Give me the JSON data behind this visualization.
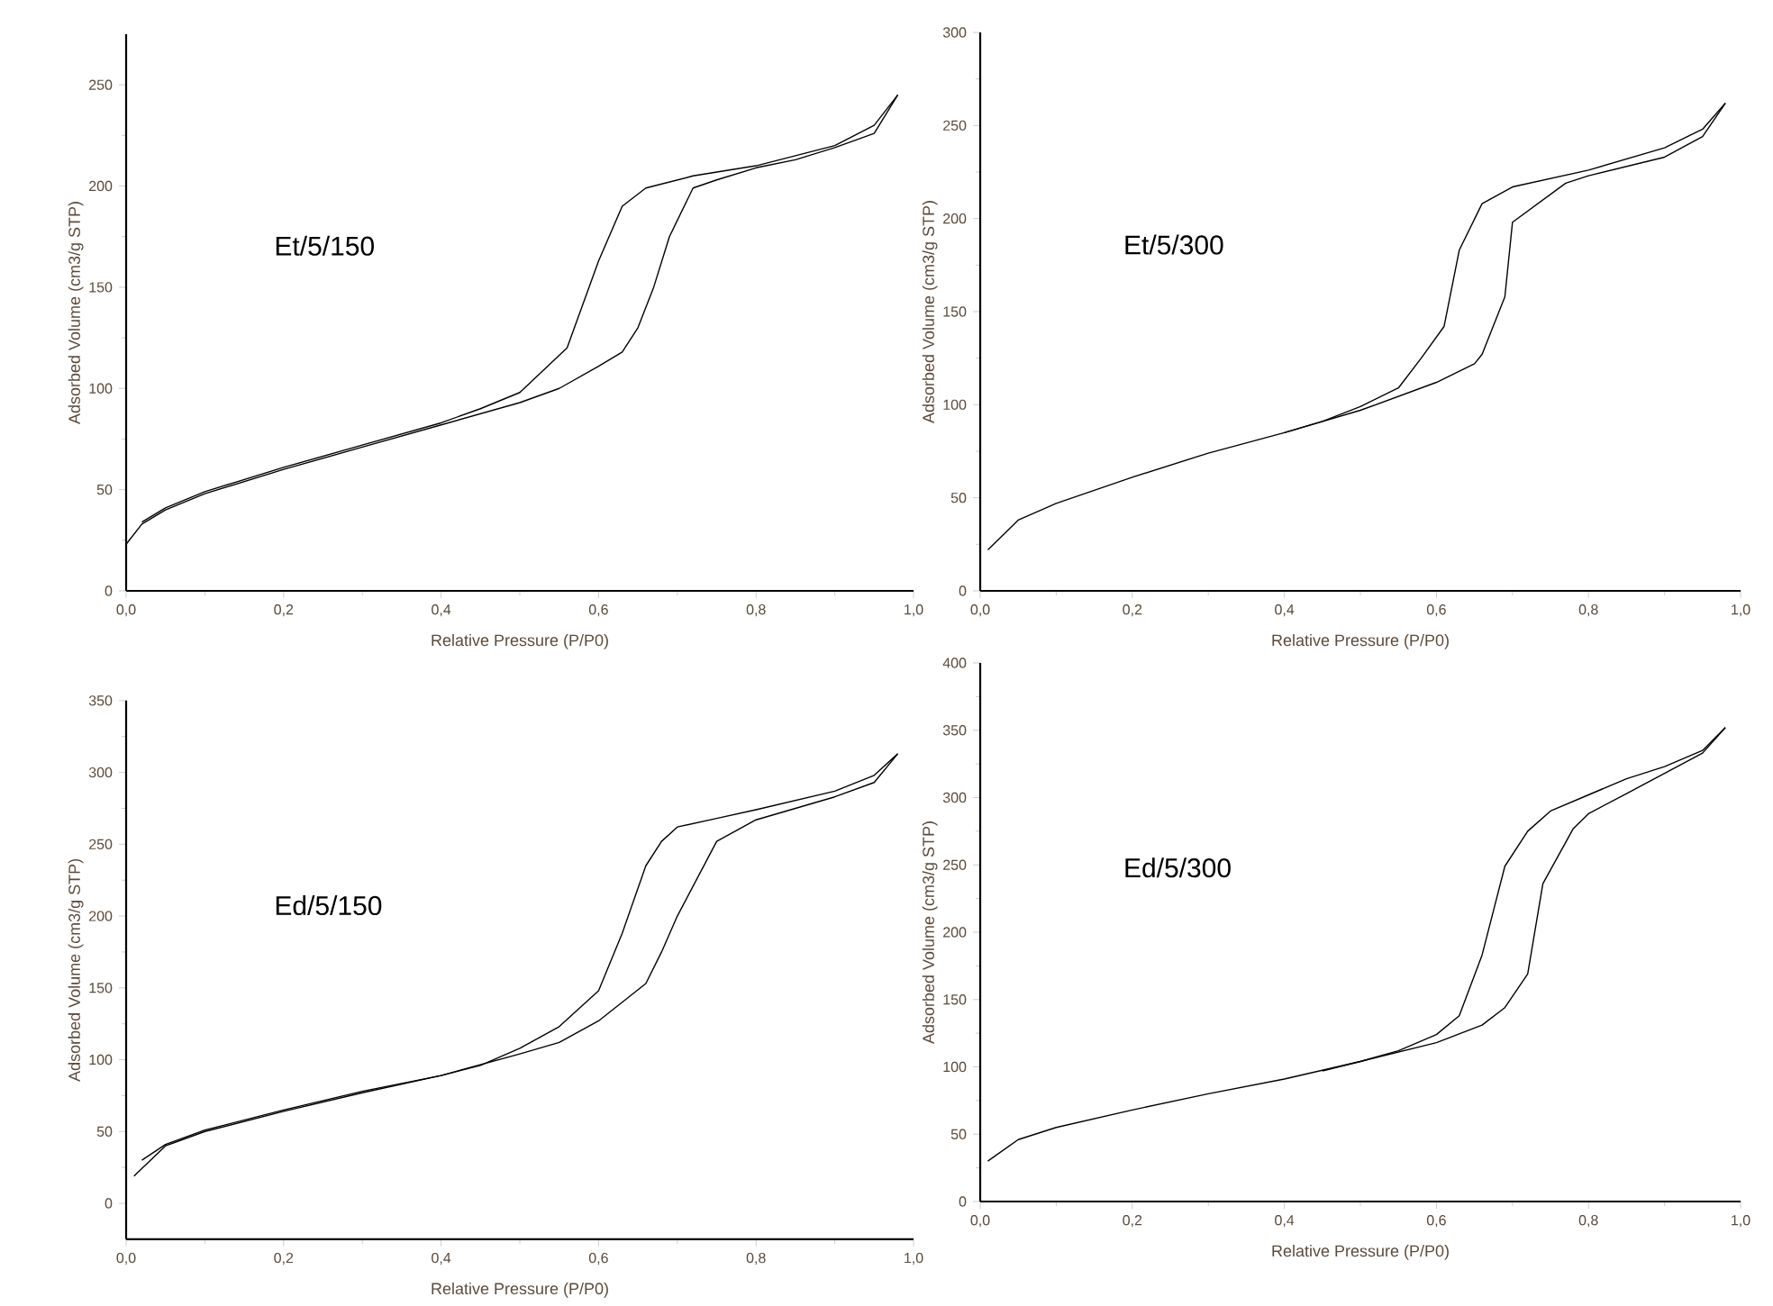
{
  "chart_data": [
    {
      "type": "line",
      "xlabel": "Relative Pressure (P/P0)",
      "ylabel": "Adsorbed Volume (cm3/g STP)",
      "annotations": [
        "Et/5/150"
      ],
      "xlim": [
        0,
        1
      ],
      "ylim": [
        0,
        275
      ],
      "xticks": [
        {
          "value": 0,
          "label": "0,0"
        },
        {
          "value": 0.2,
          "label": "0,2"
        },
        {
          "value": 0.4,
          "label": "0,4"
        },
        {
          "value": 0.6,
          "label": "0,6"
        },
        {
          "value": 0.8,
          "label": "0,8"
        },
        {
          "value": 1,
          "label": "1,0"
        }
      ],
      "yticks": [
        0,
        50,
        100,
        150,
        200,
        250
      ],
      "series": [
        {
          "color": "#000000",
          "x": [
            0.0,
            0.02,
            0.05,
            0.1,
            0.2,
            0.3,
            0.4,
            0.5,
            0.55,
            0.6,
            0.63,
            0.65,
            0.67,
            0.69,
            0.72,
            0.75,
            0.8,
            0.85,
            0.9,
            0.95,
            0.98
          ],
          "values": [
            23,
            33,
            40,
            48,
            60,
            71,
            82,
            93,
            100,
            111,
            118,
            130,
            150,
            175,
            199,
            203,
            209,
            213,
            219,
            226,
            245
          ]
        },
        {
          "color": "#000000",
          "x": [
            0.98,
            0.95,
            0.9,
            0.8,
            0.72,
            0.66,
            0.63,
            0.6,
            0.56,
            0.5,
            0.45,
            0.4,
            0.3,
            0.2,
            0.1,
            0.05,
            0.02
          ],
          "values": [
            245,
            230,
            220,
            210,
            205,
            199,
            190,
            163,
            120,
            98,
            90,
            83,
            72,
            61,
            49,
            41,
            34
          ]
        }
      ]
    },
    {
      "type": "line",
      "xlabel": "Relative Pressure (P/P0)",
      "ylabel": "Adsorbed Volume (cm3/g STP)",
      "annotations": [
        "Et/5/300"
      ],
      "xlim": [
        0,
        1
      ],
      "ylim": [
        0,
        300
      ],
      "xticks": [
        {
          "value": 0,
          "label": "0,0"
        },
        {
          "value": 0.2,
          "label": "0,2"
        },
        {
          "value": 0.4,
          "label": "0,4"
        },
        {
          "value": 0.6,
          "label": "0,6"
        },
        {
          "value": 0.8,
          "label": "0,8"
        },
        {
          "value": 1,
          "label": "1,0"
        }
      ],
      "yticks": [
        0,
        50,
        100,
        150,
        200,
        250,
        300
      ],
      "series": [
        {
          "color": "#000000",
          "x": [
            0.01,
            0.05,
            0.1,
            0.2,
            0.3,
            0.4,
            0.5,
            0.6,
            0.65,
            0.66,
            0.69,
            0.7,
            0.77,
            0.8,
            0.9,
            0.95,
            0.98
          ],
          "values": [
            22,
            38,
            47,
            61,
            74,
            85,
            97,
            112,
            122,
            127,
            158,
            198,
            219,
            223,
            233,
            244,
            262
          ]
        },
        {
          "color": "#000000",
          "x": [
            0.98,
            0.95,
            0.9,
            0.8,
            0.7,
            0.66,
            0.63,
            0.61,
            0.58,
            0.55,
            0.5,
            0.45,
            0.4
          ],
          "values": [
            262,
            248,
            238,
            226,
            217,
            208,
            183,
            142,
            125,
            109,
            99,
            91,
            85
          ]
        }
      ]
    },
    {
      "type": "line",
      "xlabel": "Relative Pressure (P/P0)",
      "ylabel": "Adsorbed Volume (cm3/g STP)",
      "annotations": [
        "Ed/5/150"
      ],
      "xlim": [
        0,
        1
      ],
      "ylim": [
        -25,
        350
      ],
      "xticks": [
        {
          "value": 0,
          "label": "0,0"
        },
        {
          "value": 0.2,
          "label": "0,2"
        },
        {
          "value": 0.4,
          "label": "0,4"
        },
        {
          "value": 0.6,
          "label": "0,6"
        },
        {
          "value": 0.8,
          "label": "0,8"
        },
        {
          "value": 1,
          "label": "1,0"
        }
      ],
      "yticks": [
        0,
        50,
        100,
        150,
        200,
        250,
        300,
        350
      ],
      "series": [
        {
          "color": "#000000",
          "x": [
            0.01,
            0.05,
            0.1,
            0.2,
            0.3,
            0.4,
            0.5,
            0.55,
            0.6,
            0.66,
            0.68,
            0.7,
            0.75,
            0.8,
            0.9,
            0.95,
            0.98
          ],
          "values": [
            19,
            40,
            50,
            64,
            77,
            89,
            104,
            112,
            127,
            153,
            175,
            200,
            252,
            267,
            283,
            293,
            313
          ]
        },
        {
          "color": "#000000",
          "x": [
            0.98,
            0.95,
            0.9,
            0.8,
            0.75,
            0.7,
            0.68,
            0.66,
            0.63,
            0.6,
            0.55,
            0.5,
            0.45,
            0.4,
            0.3,
            0.2,
            0.1,
            0.05,
            0.02
          ],
          "values": [
            313,
            298,
            287,
            274,
            268,
            262,
            252,
            235,
            188,
            148,
            123,
            108,
            96,
            89,
            78,
            65,
            51,
            41,
            30
          ]
        }
      ]
    },
    {
      "type": "line",
      "xlabel": "Relative Pressure (P/P0)",
      "ylabel": "Adsorbed Volume (cm3/g STP)",
      "annotations": [
        "Ed/5/300"
      ],
      "xlim": [
        0,
        1
      ],
      "ylim": [
        0,
        400
      ],
      "xticks": [
        {
          "value": 0,
          "label": "0,0"
        },
        {
          "value": 0.2,
          "label": "0,2"
        },
        {
          "value": 0.4,
          "label": "0,4"
        },
        {
          "value": 0.6,
          "label": "0,6"
        },
        {
          "value": 0.8,
          "label": "0,8"
        },
        {
          "value": 1,
          "label": "1,0"
        }
      ],
      "yticks": [
        0,
        50,
        100,
        150,
        200,
        250,
        300,
        350,
        400
      ],
      "series": [
        {
          "color": "#000000",
          "x": [
            0.01,
            0.05,
            0.1,
            0.2,
            0.3,
            0.4,
            0.5,
            0.6,
            0.66,
            0.69,
            0.72,
            0.74,
            0.78,
            0.8,
            0.85,
            0.9,
            0.95,
            0.98
          ],
          "values": [
            30,
            46,
            55,
            68,
            80,
            91,
            104,
            118,
            131,
            144,
            169,
            236,
            277,
            288,
            303,
            318,
            333,
            352
          ]
        },
        {
          "color": "#000000",
          "x": [
            0.98,
            0.95,
            0.9,
            0.85,
            0.8,
            0.75,
            0.72,
            0.69,
            0.66,
            0.63,
            0.6,
            0.55,
            0.5,
            0.45
          ],
          "values": [
            352,
            335,
            323,
            314,
            302,
            290,
            275,
            249,
            183,
            138,
            124,
            112,
            104,
            97
          ]
        }
      ]
    }
  ]
}
